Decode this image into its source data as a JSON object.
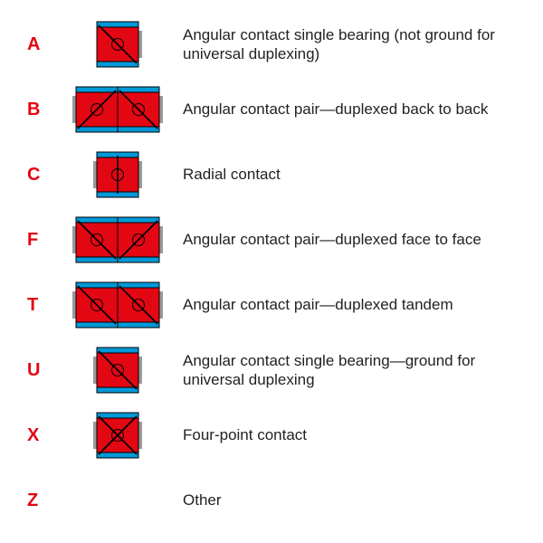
{
  "colors": {
    "code": "#e30613",
    "desc": "#222222",
    "bearing_red": "#e30613",
    "bearing_blue": "#0099d8",
    "bearing_grey": "#9a9a9a",
    "line_black": "#000000"
  },
  "font": {
    "code_size": 20,
    "desc_size": 17
  },
  "rows": [
    {
      "code": "A",
      "icon": "single_angular_offset",
      "desc": "Angular contact single bearing (not ground for universal duplexing)"
    },
    {
      "code": "B",
      "icon": "pair_back_to_back",
      "desc": "Angular contact pair—duplexed back to back"
    },
    {
      "code": "C",
      "icon": "radial",
      "desc": "Radial contact"
    },
    {
      "code": "F",
      "icon": "pair_face_to_face",
      "desc": "Angular contact pair—duplexed face to face"
    },
    {
      "code": "T",
      "icon": "pair_tandem",
      "desc": "Angular contact pair—duplexed tandem"
    },
    {
      "code": "U",
      "icon": "single_angular_universal",
      "desc": "Angular contact single bearing—ground for universal duplexing"
    },
    {
      "code": "X",
      "icon": "four_point",
      "desc": "Four-point contact"
    },
    {
      "code": "Z",
      "icon": "none",
      "desc": "Other"
    }
  ],
  "bearing_style": {
    "single_width": 46,
    "pair_width": 92,
    "height": 50,
    "outer_ring_h": 6,
    "inner_ring_h": 6,
    "ball_d": 13,
    "line_w": 1.7
  }
}
